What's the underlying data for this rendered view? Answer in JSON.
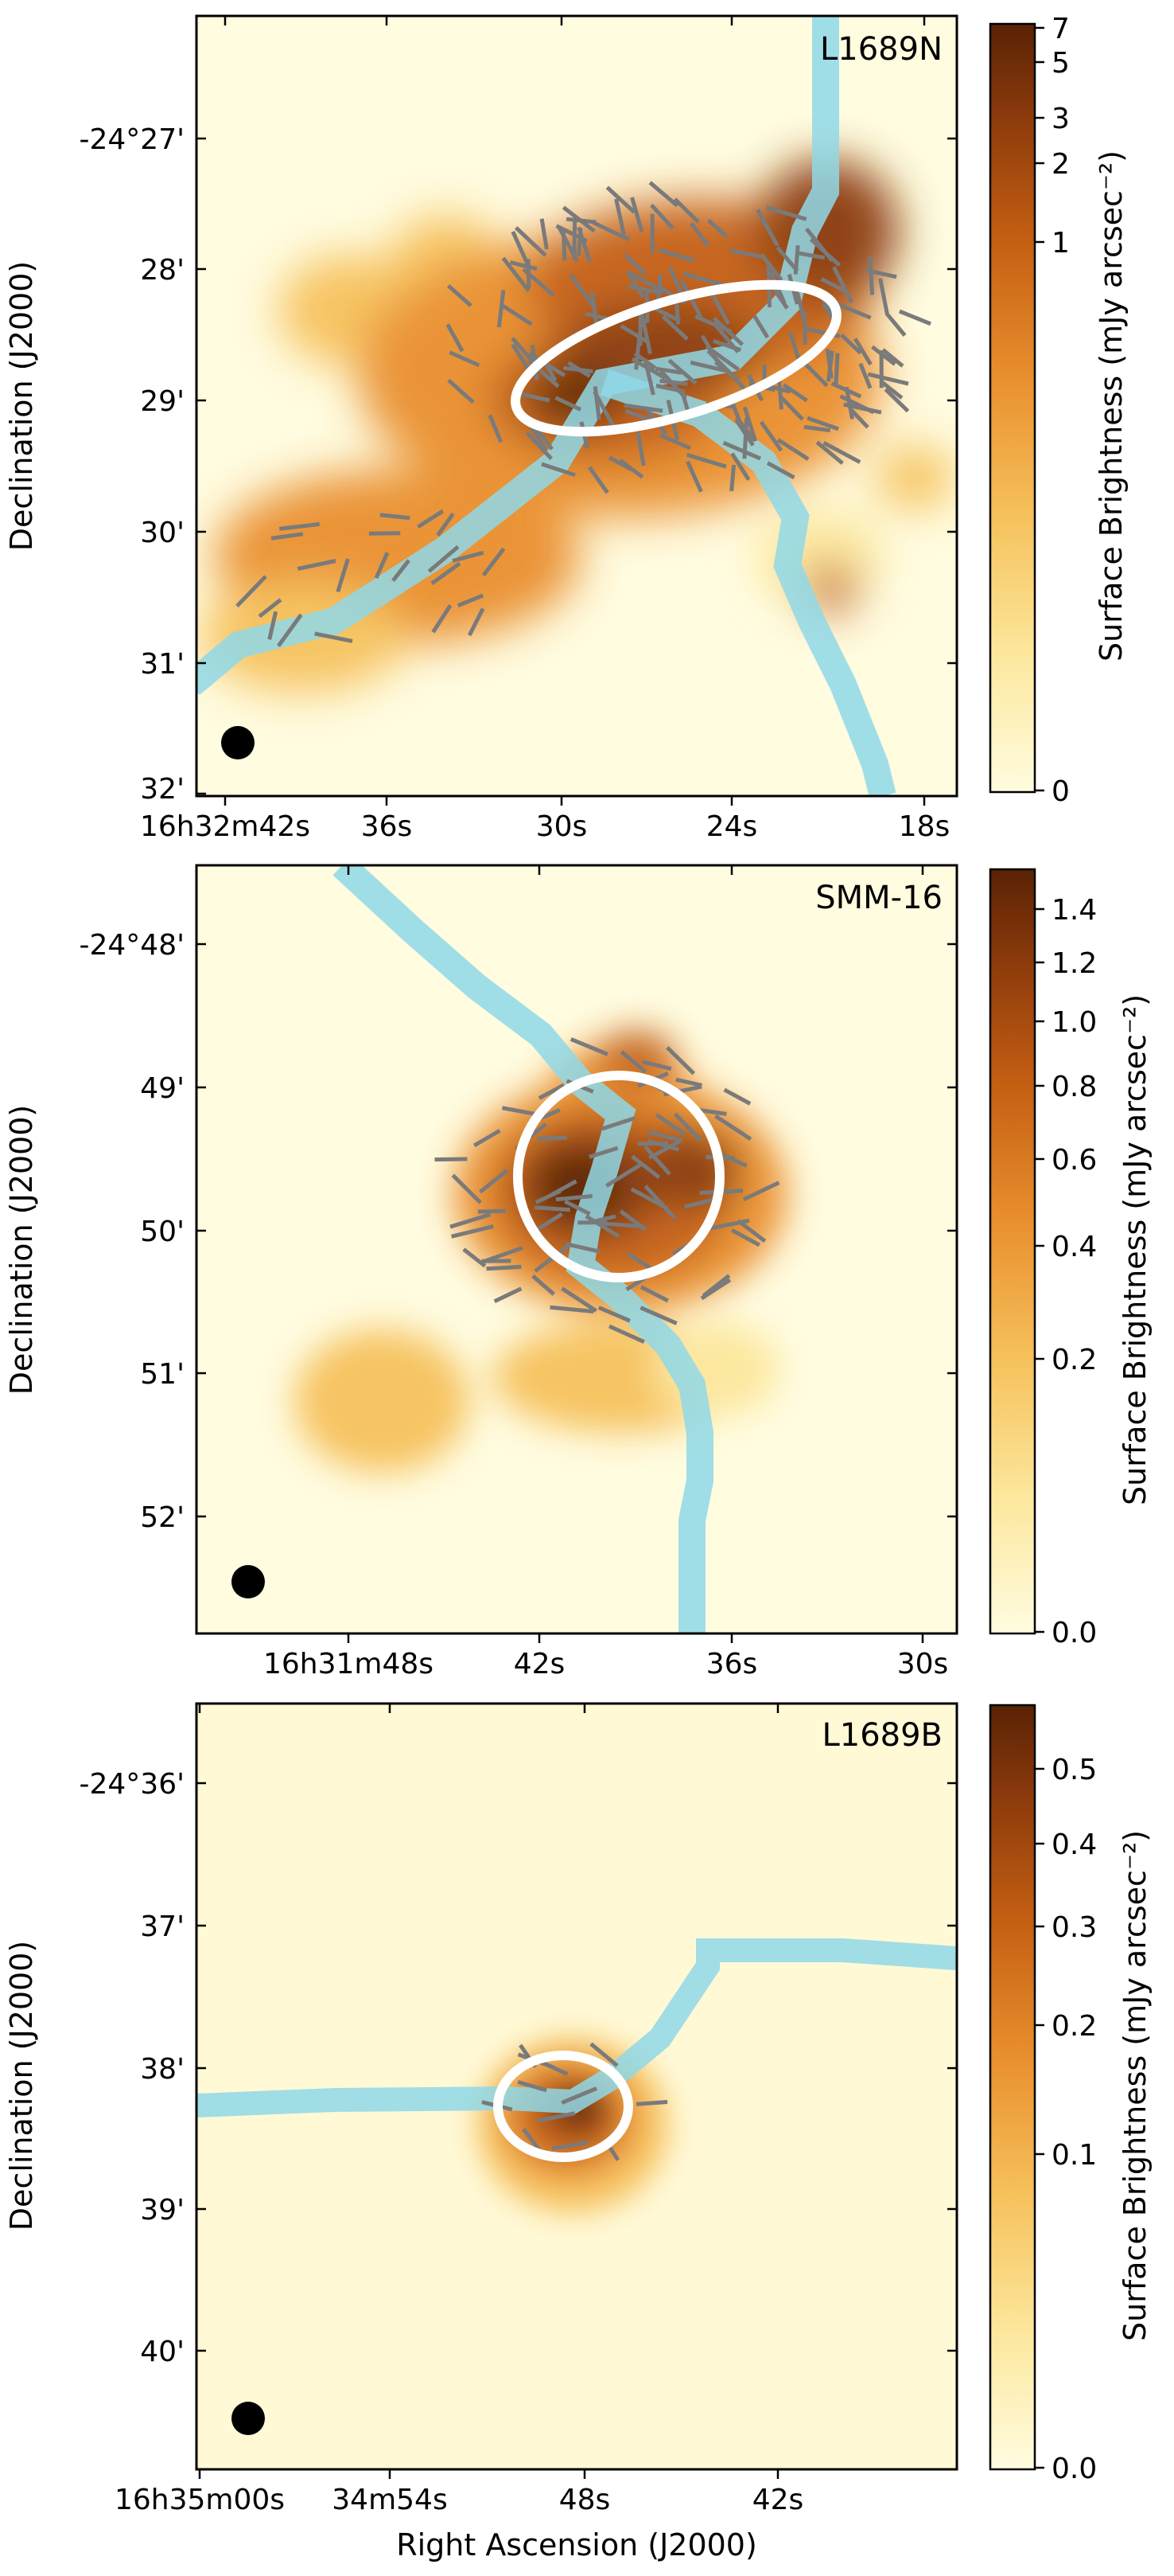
{
  "figure": {
    "shared_xlabel": "Right Ascension (J2000)",
    "shared_ylabel": "Declination (J2000)",
    "colorbar_label": "Surface Brightness (mJy arcsec⁻²)"
  },
  "chart_data": [
    {
      "type": "heatmap",
      "source_label": "L1689N",
      "xlabel": "",
      "ylabel": "Declination (J2000)",
      "x_tick_labels": [
        "16h32m42s",
        "36s",
        "30s",
        "24s",
        "18s"
      ],
      "y_tick_labels": [
        "-24°27'",
        "28'",
        "29'",
        "30'",
        "31'",
        "32'"
      ],
      "colorbar_label": "Surface Brightness (mJy arcsec⁻²)",
      "colorbar_ticks": [
        "0",
        "1",
        "2",
        "3",
        "5",
        "7"
      ],
      "colorbar_range": [
        0,
        7
      ],
      "colorbar_scale": "asinh",
      "colormap": [
        "#fffce0",
        "#fce79c",
        "#f6c15b",
        "#e98f2e",
        "#c45e12",
        "#8b3a0c",
        "#5a2205"
      ],
      "overlays": [
        "polarization vectors (grey)",
        "filament skeleton (light blue)",
        "core ellipse (white)",
        "beam (black circle)"
      ]
    },
    {
      "type": "heatmap",
      "source_label": "SMM-16",
      "xlabel": "",
      "ylabel": "Declination (J2000)",
      "x_tick_labels": [
        "16h31m48s",
        "42s",
        "36s",
        "30s"
      ],
      "y_tick_labels": [
        "-24°48'",
        "49'",
        "50'",
        "51'",
        "52'"
      ],
      "colorbar_label": "Surface Brightness (mJy arcsec⁻²)",
      "colorbar_ticks": [
        "0.0",
        "0.2",
        "0.4",
        "0.6",
        "0.8",
        "1.0",
        "1.2",
        "1.4"
      ],
      "colorbar_range": [
        0.0,
        1.4
      ],
      "colorbar_scale": "sqrt",
      "colormap": [
        "#fffce0",
        "#fce79c",
        "#f6c15b",
        "#e98f2e",
        "#c45e12",
        "#8b3a0c",
        "#5a2205"
      ],
      "overlays": [
        "polarization vectors (grey)",
        "filament skeleton (light blue)",
        "core ellipse (white)",
        "beam (black circle)"
      ]
    },
    {
      "type": "heatmap",
      "source_label": "L1689B",
      "xlabel": "Right Ascension (J2000)",
      "ylabel": "Declination (J2000)",
      "x_tick_labels": [
        "16h35m00s",
        "34m54s",
        "48s",
        "42s"
      ],
      "y_tick_labels": [
        "-24°36'",
        "37'",
        "38'",
        "39'",
        "40'"
      ],
      "colorbar_label": "Surface Brightness (mJy arcsec⁻²)",
      "colorbar_ticks": [
        "0.0",
        "0.1",
        "0.2",
        "0.3",
        "0.4",
        "0.5"
      ],
      "colorbar_range": [
        0.0,
        0.55
      ],
      "colorbar_scale": "sqrt",
      "colormap": [
        "#fffce0",
        "#fce79c",
        "#f6c15b",
        "#e98f2e",
        "#c45e12",
        "#8b3a0c",
        "#5a2205"
      ],
      "overlays": [
        "polarization vectors (grey)",
        "filament skeleton (light blue)",
        "core ellipse (white)",
        "beam (black circle)"
      ]
    }
  ]
}
